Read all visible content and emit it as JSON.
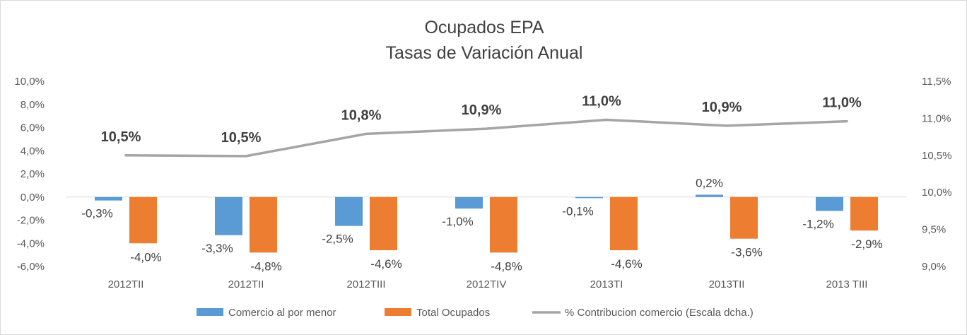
{
  "chart_data": {
    "type": "bar",
    "title": "Ocupados EPA",
    "subtitle": "Tasas de Variación Anual",
    "categories": [
      "2012TII",
      "2012TII",
      "2012TIII",
      "2012TIV",
      "2013TI",
      "2013TII",
      "2013 TIII"
    ],
    "series": [
      {
        "name": "Comercio al por menor",
        "type": "bar",
        "axis": "left",
        "color": "#5b9bd5",
        "values": [
          -0.3,
          -3.3,
          -2.5,
          -1.0,
          -0.1,
          0.2,
          -1.2
        ],
        "labels": [
          "-0,3%",
          "-3,3%",
          "-2,5%",
          "-1,0%",
          "-0,1%",
          "0,2%",
          "-1,2%"
        ]
      },
      {
        "name": "Total Ocupados",
        "type": "bar",
        "axis": "left",
        "color": "#ed7d31",
        "values": [
          -4.0,
          -4.8,
          -4.6,
          -4.8,
          -4.6,
          -3.6,
          -2.9
        ],
        "labels": [
          "-4,0%",
          "-4,8%",
          "-4,6%",
          "-4,8%",
          "-4,6%",
          "-3,6%",
          "-2,9%"
        ]
      },
      {
        "name": "% Contribucion comercio (Escala dcha.)",
        "type": "line",
        "axis": "right",
        "color": "#a5a5a5",
        "values": [
          10.5,
          10.49,
          10.79,
          10.86,
          10.98,
          10.9,
          10.96
        ],
        "labels": [
          "10,5%",
          "10,5%",
          "10,8%",
          "10,9%",
          "11,0%",
          "10,9%",
          "11,0%"
        ]
      }
    ],
    "y_left": {
      "ylim": [
        -6,
        10
      ],
      "ticks": [
        10,
        8,
        6,
        4,
        2,
        0,
        -2,
        -4,
        -6
      ],
      "tick_labels": [
        "10,0%",
        "8,0%",
        "6,0%",
        "4,0%",
        "2,0%",
        "0,0%",
        "-2,0%",
        "-4,0%",
        "-6,0%"
      ]
    },
    "y_right": {
      "ylim": [
        9.0,
        11.5
      ],
      "ticks": [
        11.5,
        11.0,
        10.5,
        10.0,
        9.5,
        9.0
      ],
      "tick_labels": [
        "11,5%",
        "11,0%",
        "10,5%",
        "10,0%",
        "9,5%",
        "9,0%"
      ]
    },
    "grid": false,
    "legend_position": "bottom"
  }
}
